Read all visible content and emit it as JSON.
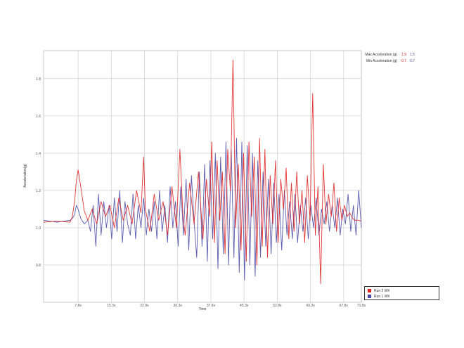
{
  "chart_data": {
    "type": "line",
    "title": "",
    "xlabel": "Time",
    "ylabel": "Acceleration(g)",
    "xlim": [
      0,
      71.8
    ],
    "ylim": [
      0.6,
      1.95
    ],
    "grid": true,
    "legend_position": "bottom-right",
    "x_ticks": [
      7.8,
      15.3,
      22.8,
      30.3,
      37.8,
      45.3,
      52.8,
      60.3,
      67.8,
      71.8
    ],
    "x_tick_labels": [
      "7.8s",
      "15.3s",
      "22.8s",
      "30.3s",
      "37.8s",
      "45.3s",
      "52.8s",
      "60.3s",
      "67.8s",
      "71.8s"
    ],
    "y_ticks": [
      0.8,
      1.0,
      1.2,
      1.4,
      1.6,
      1.8
    ],
    "y_tick_labels": [
      "0.8",
      "1.0",
      "1.2",
      "1.4",
      "1.6",
      "1.8"
    ],
    "stats": {
      "rows": [
        {
          "label": "Max Acceleration (g)",
          "values": [
            "1.9",
            "1.5"
          ]
        },
        {
          "label": "Min Acceleration (g)",
          "values": [
            "0.7",
            "0.7"
          ]
        }
      ]
    },
    "series": [
      {
        "name": "Run 2 Wh",
        "color": "#e02020",
        "x": [
          0,
          3,
          6,
          6.5,
          7,
          7.4,
          7.8,
          8.4,
          9.2,
          10.0,
          11.0,
          12.0,
          13.0,
          14.0,
          15.0,
          16.0,
          17.0,
          18.0,
          19.0,
          20.0,
          21.0,
          22.0,
          22.6,
          23.0,
          24.0,
          25.0,
          26.0,
          27.0,
          28.0,
          29.0,
          30.0,
          30.8,
          31.5,
          32.0,
          33.0,
          34.0,
          35.0,
          36.0,
          36.8,
          37.5,
          38.0,
          38.6,
          39.2,
          39.8,
          40.4,
          41.0,
          41.6,
          42.2,
          42.8,
          43.4,
          44.0,
          44.6,
          45.2,
          45.8,
          46.4,
          47.0,
          47.6,
          48.2,
          48.8,
          49.4,
          50.0,
          50.6,
          51.2,
          51.8,
          52.4,
          53.0,
          53.6,
          54.2,
          54.8,
          55.4,
          56.0,
          56.6,
          57.2,
          57.8,
          58.4,
          59.0,
          59.6,
          60.2,
          60.8,
          61.4,
          62.0,
          62.6,
          63.2,
          63.8,
          64.4,
          65.0,
          65.6,
          66.2,
          66.8,
          67.4,
          68.0,
          68.6,
          69.2,
          69.8,
          70.4,
          71.0,
          71.8
        ],
        "y": [
          1.03,
          1.035,
          1.03,
          1.06,
          1.14,
          1.25,
          1.31,
          1.22,
          1.09,
          1.04,
          1.1,
          1.02,
          1.14,
          1.06,
          1.12,
          1.0,
          1.16,
          1.04,
          1.12,
          1.02,
          1.2,
          1.08,
          1.38,
          1.1,
          0.98,
          1.18,
          1.04,
          1.14,
          0.96,
          1.22,
          1.0,
          1.42,
          1.06,
          0.96,
          1.24,
          1.02,
          1.3,
          0.94,
          1.26,
          1.06,
          1.46,
          0.92,
          1.36,
          1.04,
          1.3,
          0.86,
          1.42,
          1.2,
          1.9,
          1.0,
          1.34,
          0.88,
          1.4,
          0.82,
          1.46,
          1.06,
          1.38,
          0.8,
          1.48,
          0.9,
          1.42,
          0.84,
          1.28,
          1.02,
          1.36,
          0.92,
          1.26,
          1.1,
          1.32,
          0.94,
          1.24,
          0.98,
          1.3,
          1.02,
          1.2,
          0.92,
          1.28,
          1.04,
          1.72,
          0.96,
          1.22,
          0.7,
          1.34,
          1.02,
          1.18,
          1.06,
          1.24,
          0.98,
          1.16,
          1.04,
          1.12,
          1.06,
          1.08,
          1.05,
          1.04,
          1.04,
          1.035
        ]
      },
      {
        "name": "Run 1 Wh",
        "color": "#4a4aa8",
        "x": [
          0,
          3,
          6,
          6.5,
          7,
          7.4,
          7.8,
          8.4,
          9.2,
          10.0,
          10.6,
          11.2,
          11.8,
          12.4,
          13.0,
          13.6,
          14.2,
          14.8,
          15.4,
          16.0,
          16.6,
          17.2,
          17.8,
          18.4,
          19.0,
          19.6,
          20.2,
          20.8,
          21.4,
          22.0,
          22.6,
          23.2,
          23.8,
          24.4,
          25.0,
          25.6,
          26.2,
          26.8,
          27.4,
          28.0,
          28.6,
          29.2,
          29.8,
          30.4,
          31.0,
          31.6,
          32.2,
          32.8,
          33.4,
          34.0,
          34.6,
          35.2,
          35.8,
          36.4,
          37.0,
          37.6,
          38.2,
          38.8,
          39.4,
          40.0,
          40.6,
          41.2,
          41.8,
          42.4,
          43.0,
          43.6,
          44.2,
          44.8,
          45.4,
          46.0,
          46.6,
          47.2,
          47.8,
          48.4,
          49.0,
          49.6,
          50.2,
          50.8,
          51.4,
          52.0,
          52.6,
          53.2,
          53.8,
          54.4,
          55.0,
          55.6,
          56.2,
          56.8,
          57.4,
          58.0,
          58.6,
          59.2,
          59.8,
          60.4,
          61.0,
          61.6,
          62.2,
          62.8,
          63.4,
          64.0,
          64.6,
          65.2,
          65.8,
          66.4,
          67.0,
          67.6,
          68.2,
          68.8,
          69.4,
          70.0,
          70.6,
          71.2,
          71.8
        ],
        "y": [
          1.04,
          1.03,
          1.04,
          1.05,
          1.07,
          1.12,
          1.1,
          1.05,
          1.02,
          1.04,
          0.98,
          1.12,
          0.9,
          1.18,
          0.96,
          1.14,
          1.0,
          1.12,
          0.94,
          1.16,
          0.98,
          1.2,
          0.92,
          1.14,
          1.02,
          0.96,
          1.18,
          0.94,
          1.12,
          1.0,
          1.16,
          0.96,
          1.1,
          0.98,
          1.14,
          0.94,
          1.2,
          0.98,
          1.12,
          0.92,
          1.22,
          1.0,
          1.14,
          0.9,
          1.22,
          0.96,
          1.26,
          0.88,
          1.28,
          1.04,
          0.84,
          1.3,
          0.9,
          1.34,
          0.82,
          1.36,
          0.94,
          1.4,
          0.78,
          1.38,
          0.86,
          1.46,
          0.8,
          1.42,
          0.84,
          1.48,
          0.76,
          1.46,
          0.72,
          1.44,
          0.8,
          1.4,
          0.74,
          1.36,
          0.84,
          1.3,
          0.9,
          1.26,
          0.86,
          1.24,
          0.92,
          1.18,
          0.88,
          1.2,
          0.96,
          1.14,
          0.94,
          1.18,
          0.92,
          1.12,
          0.98,
          1.16,
          0.94,
          1.12,
          1.0,
          1.16,
          0.96,
          1.1,
          1.02,
          1.14,
          0.98,
          1.12,
          1.0,
          1.16,
          0.96,
          1.1,
          1.02,
          1.18,
          0.98,
          1.12,
          0.96,
          1.2,
          1.0
        ]
      }
    ]
  }
}
